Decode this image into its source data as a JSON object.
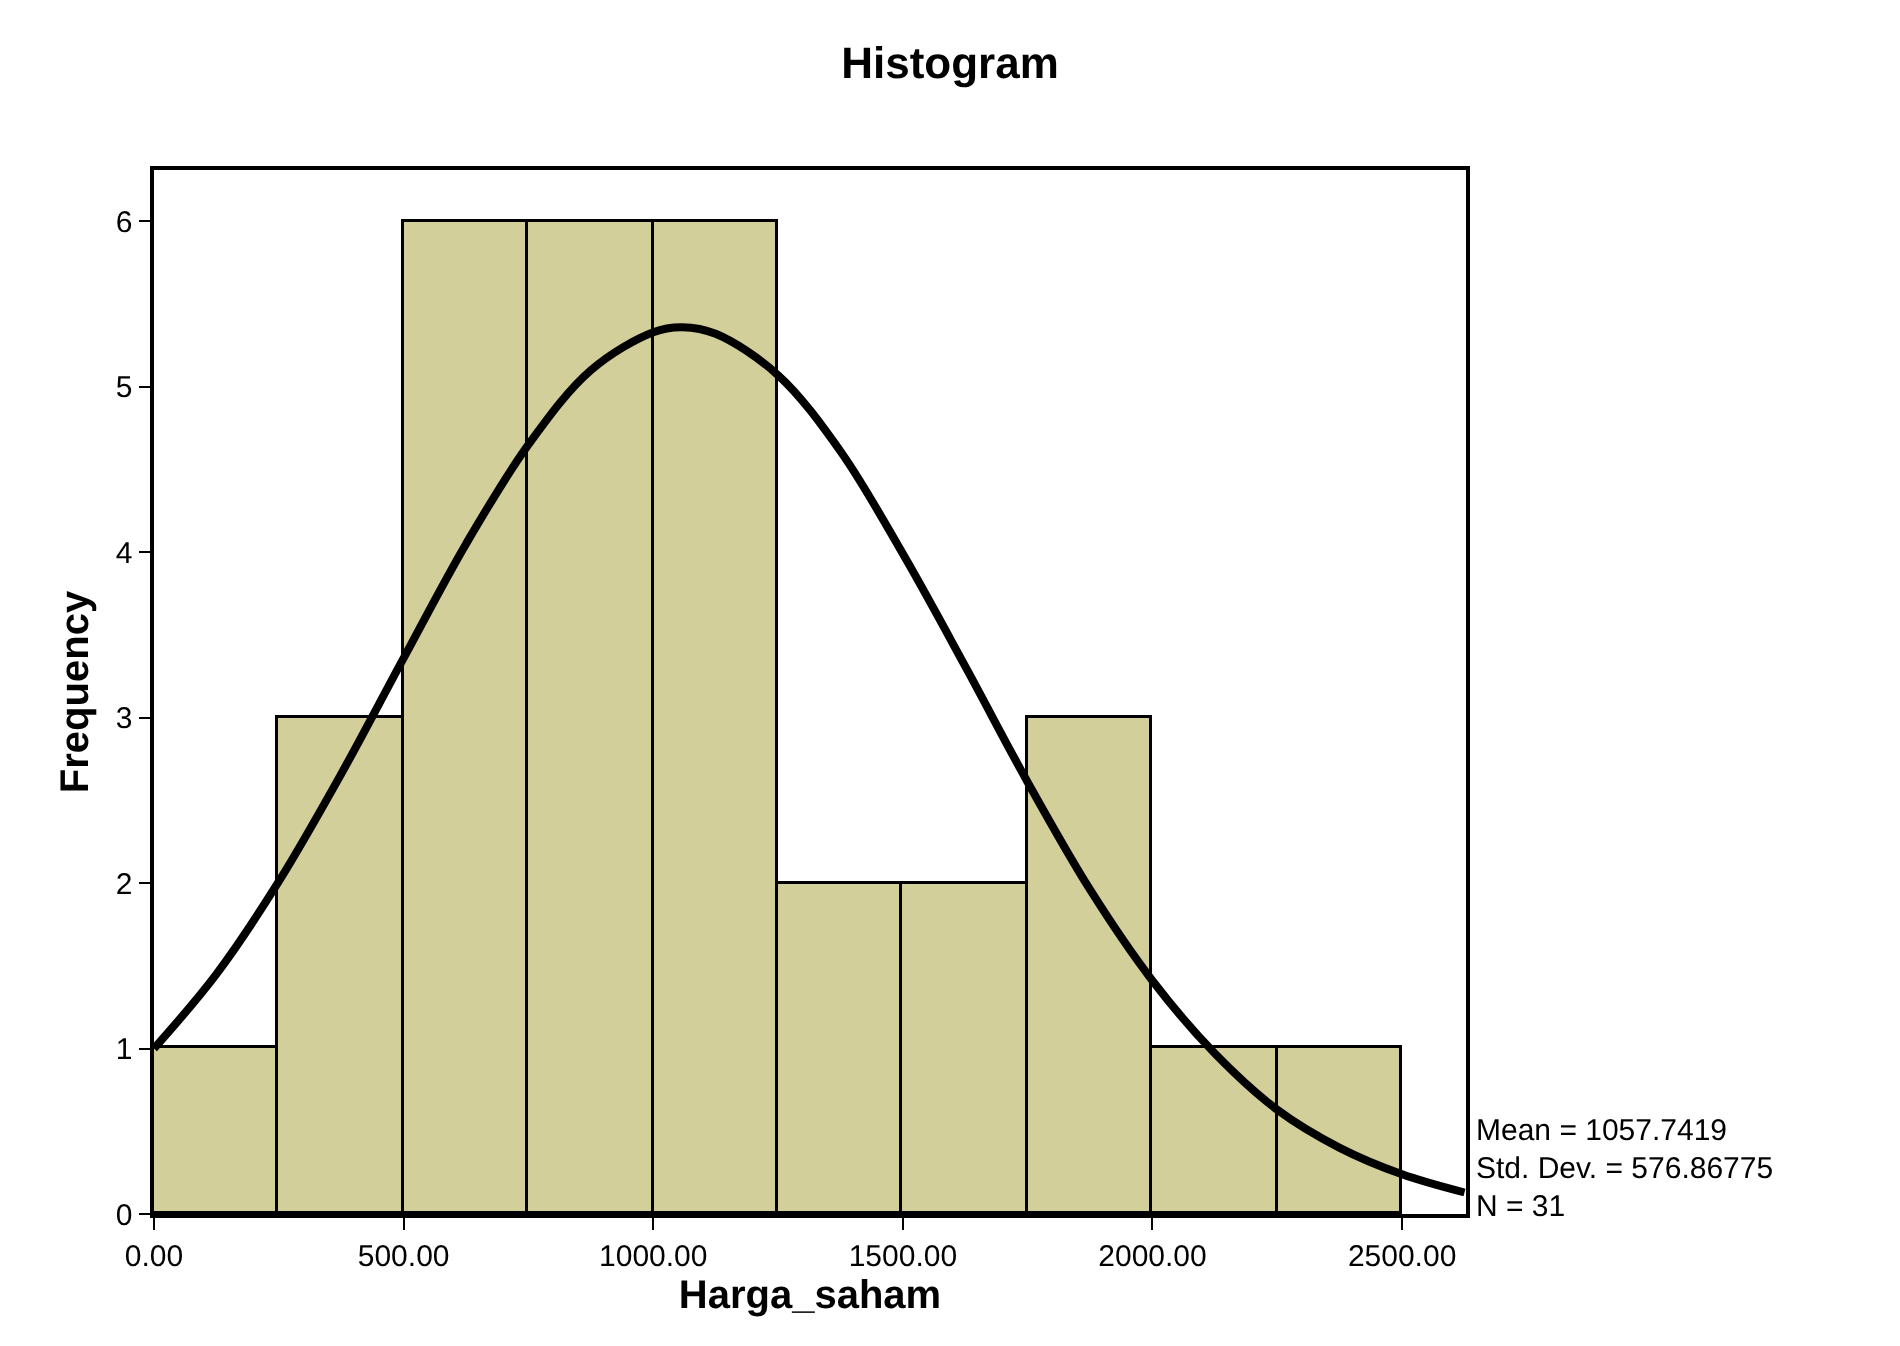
{
  "chart_data": {
    "type": "histogram",
    "title": "Histogram",
    "xlabel": "Harga_saham",
    "ylabel": "Frequency",
    "series": [
      {
        "color": "#d3cf9a",
        "bins": [
          0,
          250,
          500,
          750,
          1000,
          1250,
          1500,
          1750,
          2000,
          2250,
          2500
        ],
        "values": [
          1,
          3,
          6,
          6,
          6,
          2,
          2,
          3,
          1,
          1
        ]
      },
      {
        "type": "line",
        "color": "#000000",
        "x": [
          0,
          125,
          250,
          375,
          500,
          625,
          750,
          875,
          1000,
          1058,
          1125,
          1250,
          1375,
          1500,
          1625,
          1750,
          1875,
          2000,
          2125,
          2250,
          2375,
          2500,
          2625
        ],
        "values": [
          1.0,
          1.45,
          2.01,
          2.66,
          3.36,
          4.05,
          4.65,
          5.1,
          5.33,
          5.36,
          5.32,
          5.07,
          4.61,
          3.99,
          3.31,
          2.61,
          1.96,
          1.41,
          0.97,
          0.63,
          0.4,
          0.24,
          0.13
        ]
      }
    ],
    "xlim": [
      0,
      2628
    ],
    "ylim": [
      0,
      6.31
    ],
    "xticks": [
      {
        "value": 0,
        "label": "0.00"
      },
      {
        "value": 500,
        "label": "500.00"
      },
      {
        "value": 1000,
        "label": "1000.00"
      },
      {
        "value": 1500,
        "label": "1500.00"
      },
      {
        "value": 2000,
        "label": "2000.00"
      },
      {
        "value": 2500,
        "label": "2500.00"
      }
    ],
    "yticks": [
      0,
      1,
      2,
      3,
      4,
      5,
      6
    ],
    "marker": "none",
    "line_style": "solid",
    "annotations": [
      "Mean = 1057.7419",
      "Std. Dev. = 576.86775",
      "N = 31"
    ]
  }
}
